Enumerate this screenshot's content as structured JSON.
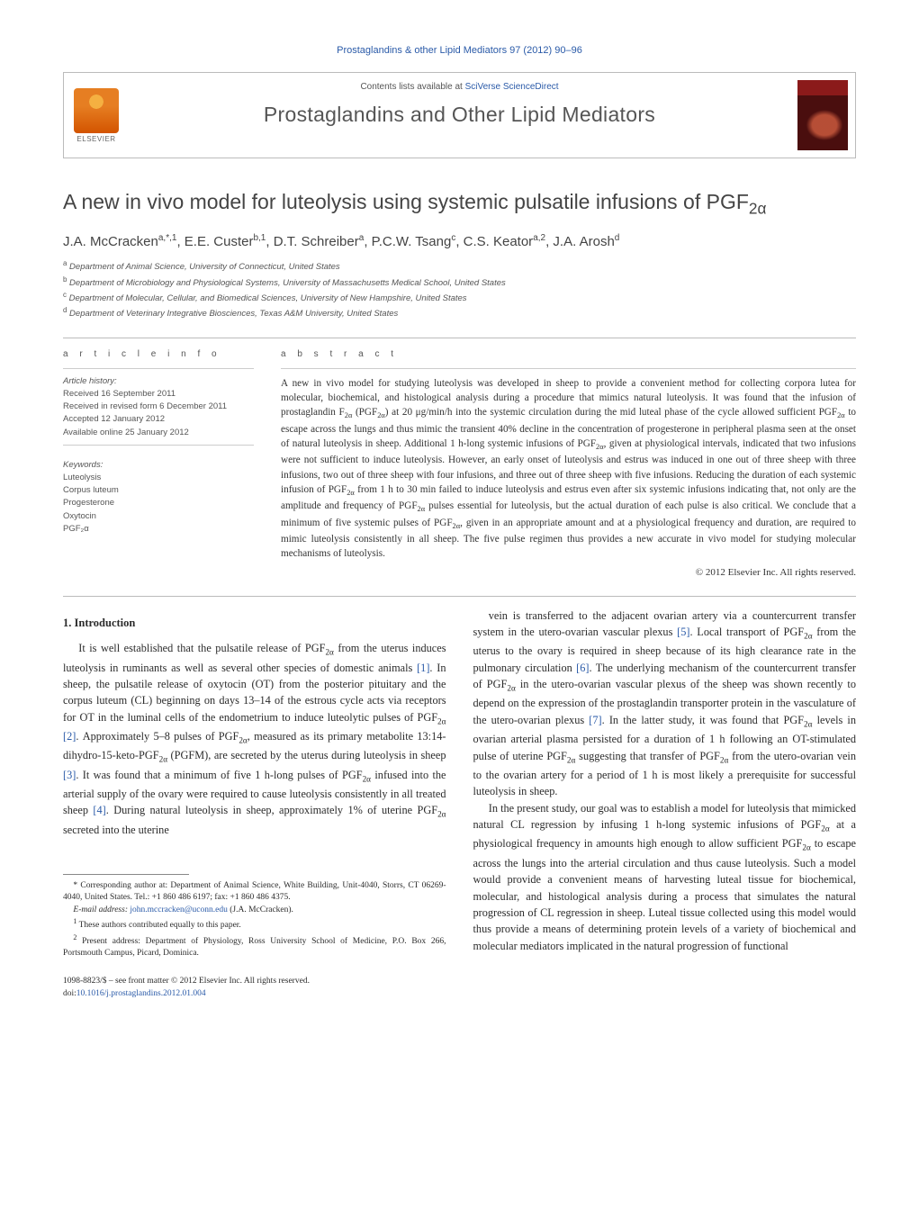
{
  "running_head": "Prostaglandins & other Lipid Mediators 97 (2012) 90–96",
  "header": {
    "elsevier_label": "ELSEVIER",
    "contents_prefix": "Contents lists available at ",
    "contents_link": "SciVerse ScienceDirect",
    "journal_name": "Prostaglandins and Other Lipid Mediators"
  },
  "title": "A new in vivo model for luteolysis using systemic pulsatile infusions of PGF₂α",
  "authors_html": "J.A. McCracken<sup>a,*,1</sup>, E.E. Custer<sup>b,1</sup>, D.T. Schreiber<sup>a</sup>, P.C.W. Tsang<sup>c</sup>, C.S. Keator<sup>a,2</sup>, J.A. Arosh<sup>d</sup>",
  "affiliations": [
    {
      "sup": "a",
      "text": "Department of Animal Science, University of Connecticut, United States"
    },
    {
      "sup": "b",
      "text": "Department of Microbiology and Physiological Systems, University of Massachusetts Medical School, United States"
    },
    {
      "sup": "c",
      "text": "Department of Molecular, Cellular, and Biomedical Sciences, University of New Hampshire, United States"
    },
    {
      "sup": "d",
      "text": "Department of Veterinary Integrative Biosciences, Texas A&M University, United States"
    }
  ],
  "article_info": {
    "heading": "a r t i c l e   i n f o",
    "history_label": "Article history:",
    "history": [
      "Received 16 September 2011",
      "Received in revised form 6 December 2011",
      "Accepted 12 January 2012",
      "Available online 25 January 2012"
    ],
    "keywords_label": "Keywords:",
    "keywords": [
      "Luteolysis",
      "Corpus luteum",
      "Progesterone",
      "Oxytocin",
      "PGF₂α"
    ]
  },
  "abstract": {
    "heading": "a b s t r a c t",
    "text": "A new in vivo model for studying luteolysis was developed in sheep to provide a convenient method for collecting corpora lutea for molecular, biochemical, and histological analysis during a procedure that mimics natural luteolysis. It was found that the infusion of prostaglandin F₂α (PGF₂α) at 20 μg/min/h into the systemic circulation during the mid luteal phase of the cycle allowed sufficient PGF₂α to escape across the lungs and thus mimic the transient 40% decline in the concentration of progesterone in peripheral plasma seen at the onset of natural luteolysis in sheep. Additional 1 h-long systemic infusions of PGF₂α, given at physiological intervals, indicated that two infusions were not sufficient to induce luteolysis. However, an early onset of luteolysis and estrus was induced in one out of three sheep with three infusions, two out of three sheep with four infusions, and three out of three sheep with five infusions. Reducing the duration of each systemic infusion of PGF₂α from 1 h to 30 min failed to induce luteolysis and estrus even after six systemic infusions indicating that, not only are the amplitude and frequency of PGF₂α pulses essential for luteolysis, but the actual duration of each pulse is also critical. We conclude that a minimum of five systemic pulses of PGF₂α, given in an appropriate amount and at a physiological frequency and duration, are required to mimic luteolysis consistently in all sheep. The five pulse regimen thus provides a new accurate in vivo model for studying molecular mechanisms of luteolysis.",
    "copyright": "© 2012 Elsevier Inc. All rights reserved."
  },
  "body": {
    "section_heading": "1. Introduction",
    "p1": "It is well established that the pulsatile release of PGF₂α from the uterus induces luteolysis in ruminants as well as several other species of domestic animals [1]. In sheep, the pulsatile release of oxytocin (OT) from the posterior pituitary and the corpus luteum (CL) beginning on days 13–14 of the estrous cycle acts via receptors for OT in the luminal cells of the endometrium to induce luteolytic pulses of PGF₂α [2]. Approximately 5–8 pulses of PGF₂α, measured as its primary metabolite 13:14-dihydro-15-keto-PGF₂α (PGFM), are secreted by the uterus during luteolysis in sheep [3]. It was found that a minimum of five 1 h-long pulses of PGF₂α infused into the arterial supply of the ovary were required to cause luteolysis consistently in all treated sheep [4]. During natural luteolysis in sheep, approximately 1% of uterine PGF₂α secreted into the uterine",
    "p2": "vein is transferred to the adjacent ovarian artery via a countercurrent transfer system in the utero-ovarian vascular plexus [5]. Local transport of PGF₂α from the uterus to the ovary is required in sheep because of its high clearance rate in the pulmonary circulation [6]. The underlying mechanism of the countercurrent transfer of PGF₂α in the utero-ovarian vascular plexus of the sheep was shown recently to depend on the expression of the prostaglandin transporter protein in the vasculature of the utero-ovarian plexus [7]. In the latter study, it was found that PGF₂α levels in ovarian arterial plasma persisted for a duration of 1 h following an OT-stimulated pulse of uterine PGF₂α suggesting that transfer of PGF₂α from the utero-ovarian vein to the ovarian artery for a period of 1 h is most likely a prerequisite for successful luteolysis in sheep.",
    "p3": "In the present study, our goal was to establish a model for luteolysis that mimicked natural CL regression by infusing 1 h-long systemic infusions of PGF₂α at a physiological frequency in amounts high enough to allow sufficient PGF₂α to escape across the lungs into the arterial circulation and thus cause luteolysis. Such a model would provide a convenient means of harvesting luteal tissue for biochemical, molecular, and histological analysis during a process that simulates the natural progression of CL regression in sheep. Luteal tissue collected using this model would thus provide a means of determining protein levels of a variety of biochemical and molecular mediators implicated in the natural progression of functional"
  },
  "footnotes": {
    "corr": "* Corresponding author at: Department of Animal Science, White Building, Unit-4040, Storrs, CT 06269-4040, United States. Tel.: +1 860 486 6197; fax: +1 860 486 4375.",
    "email_label": "E-mail address:",
    "email": "john.mccracken@uconn.edu",
    "email_suffix": " (J.A. McCracken).",
    "eq": "1 These authors contributed equally to this paper.",
    "present": "2 Present address: Department of Physiology, Ross University School of Medicine, P.O. Box 266, Portsmouth Campus, Picard, Dominica."
  },
  "bottom": {
    "issn": "1098-8823/$ – see front matter © 2012 Elsevier Inc. All rights reserved.",
    "doi_label": "doi:",
    "doi": "10.1016/j.prostaglandins.2012.01.004"
  },
  "refs": {
    "r1": "[1]",
    "r2": "[2]",
    "r3": "[3]",
    "r4": "[4]",
    "r5": "[5]",
    "r6": "[6]",
    "r7": "[7]"
  }
}
